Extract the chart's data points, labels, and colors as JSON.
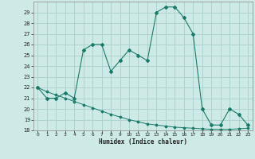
{
  "x": [
    0,
    1,
    2,
    3,
    4,
    5,
    6,
    7,
    8,
    9,
    10,
    11,
    12,
    13,
    14,
    15,
    16,
    17,
    18,
    19,
    20,
    21,
    22,
    23
  ],
  "y_main": [
    22,
    21,
    21,
    21.5,
    21,
    25.5,
    26,
    26,
    23.5,
    24.5,
    25.5,
    25,
    24.5,
    29,
    29.5,
    29.5,
    28.5,
    27,
    20,
    18.5,
    18.5,
    20,
    19.5,
    18.5
  ],
  "y_trend": [
    22,
    21.6,
    21.3,
    21.0,
    20.7,
    20.4,
    20.1,
    19.8,
    19.5,
    19.25,
    19.0,
    18.8,
    18.6,
    18.5,
    18.4,
    18.3,
    18.25,
    18.2,
    18.15,
    18.1,
    18.1,
    18.1,
    18.15,
    18.2
  ],
  "xlabel": "Humidex (Indice chaleur)",
  "xlim": [
    -0.5,
    23.5
  ],
  "ylim": [
    18,
    30
  ],
  "yticks": [
    18,
    19,
    20,
    21,
    22,
    23,
    24,
    25,
    26,
    27,
    28,
    29
  ],
  "xticks": [
    0,
    1,
    2,
    3,
    4,
    5,
    6,
    7,
    8,
    9,
    10,
    11,
    12,
    13,
    14,
    15,
    16,
    17,
    18,
    19,
    20,
    21,
    22,
    23
  ],
  "line_color": "#1a7a6a",
  "bg_color": "#cdeae6",
  "grid_color": "#aacfcc",
  "tick_color": "#222222"
}
